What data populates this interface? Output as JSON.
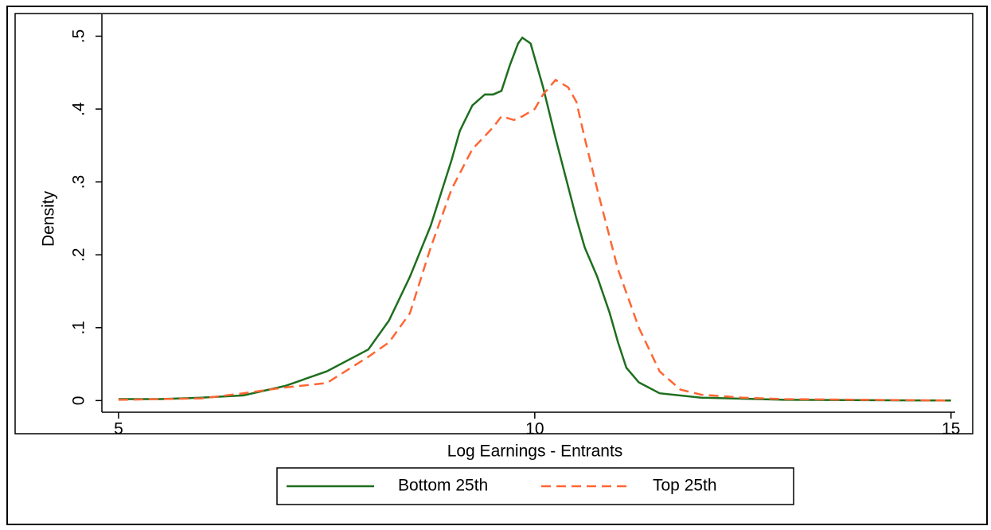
{
  "chart_data": {
    "type": "line",
    "x_label": "Log Earnings - Entrants",
    "y_label": "Density",
    "xlim": [
      4.8,
      15.05
    ],
    "ylim": [
      -0.016,
      0.53
    ],
    "xticks": [
      5,
      10,
      15
    ],
    "yticks": [
      0,
      {
        "value": 0.1,
        "label": ".1"
      },
      {
        "value": 0.2,
        "label": ".2"
      },
      {
        "value": 0.3,
        "label": ".3"
      },
      {
        "value": 0.4,
        "label": ".4"
      },
      {
        "value": 0.5,
        "label": ".5"
      }
    ],
    "grid": false,
    "legend": "bottom",
    "series": [
      {
        "name": "Bottom 25th",
        "color": "#1e6e1e",
        "dash": "solid",
        "x": [
          5.0,
          5.5,
          6.0,
          6.5,
          7.0,
          7.5,
          8.0,
          8.25,
          8.5,
          8.75,
          9.0,
          9.1,
          9.25,
          9.4,
          9.5,
          9.6,
          9.7,
          9.8,
          9.85,
          9.95,
          10.0,
          10.1,
          10.25,
          10.5,
          10.6,
          10.75,
          10.9,
          11.0,
          11.1,
          11.25,
          11.5,
          12.0,
          13.0,
          15.0
        ],
        "values": [
          0.002,
          0.002,
          0.004,
          0.007,
          0.02,
          0.04,
          0.07,
          0.11,
          0.17,
          0.24,
          0.33,
          0.37,
          0.405,
          0.42,
          0.42,
          0.425,
          0.46,
          0.49,
          0.498,
          0.49,
          0.47,
          0.43,
          0.36,
          0.25,
          0.21,
          0.17,
          0.12,
          0.08,
          0.045,
          0.025,
          0.01,
          0.004,
          0.001,
          0.0
        ]
      },
      {
        "name": "Top 25th",
        "color": "#ff6633",
        "dash": "dashed",
        "x": [
          5.0,
          5.5,
          6.0,
          6.5,
          7.0,
          7.5,
          8.0,
          8.25,
          8.5,
          8.75,
          9.0,
          9.25,
          9.5,
          9.6,
          9.75,
          9.85,
          10.0,
          10.1,
          10.25,
          10.4,
          10.5,
          10.6,
          10.75,
          11.0,
          11.25,
          11.5,
          11.75,
          12.0,
          12.5,
          13.0,
          15.0
        ],
        "values": [
          0.001,
          0.002,
          0.003,
          0.01,
          0.018,
          0.024,
          0.06,
          0.08,
          0.12,
          0.21,
          0.29,
          0.345,
          0.375,
          0.39,
          0.385,
          0.39,
          0.4,
          0.42,
          0.44,
          0.43,
          0.41,
          0.36,
          0.29,
          0.18,
          0.1,
          0.04,
          0.015,
          0.008,
          0.004,
          0.002,
          0.0
        ]
      }
    ]
  }
}
